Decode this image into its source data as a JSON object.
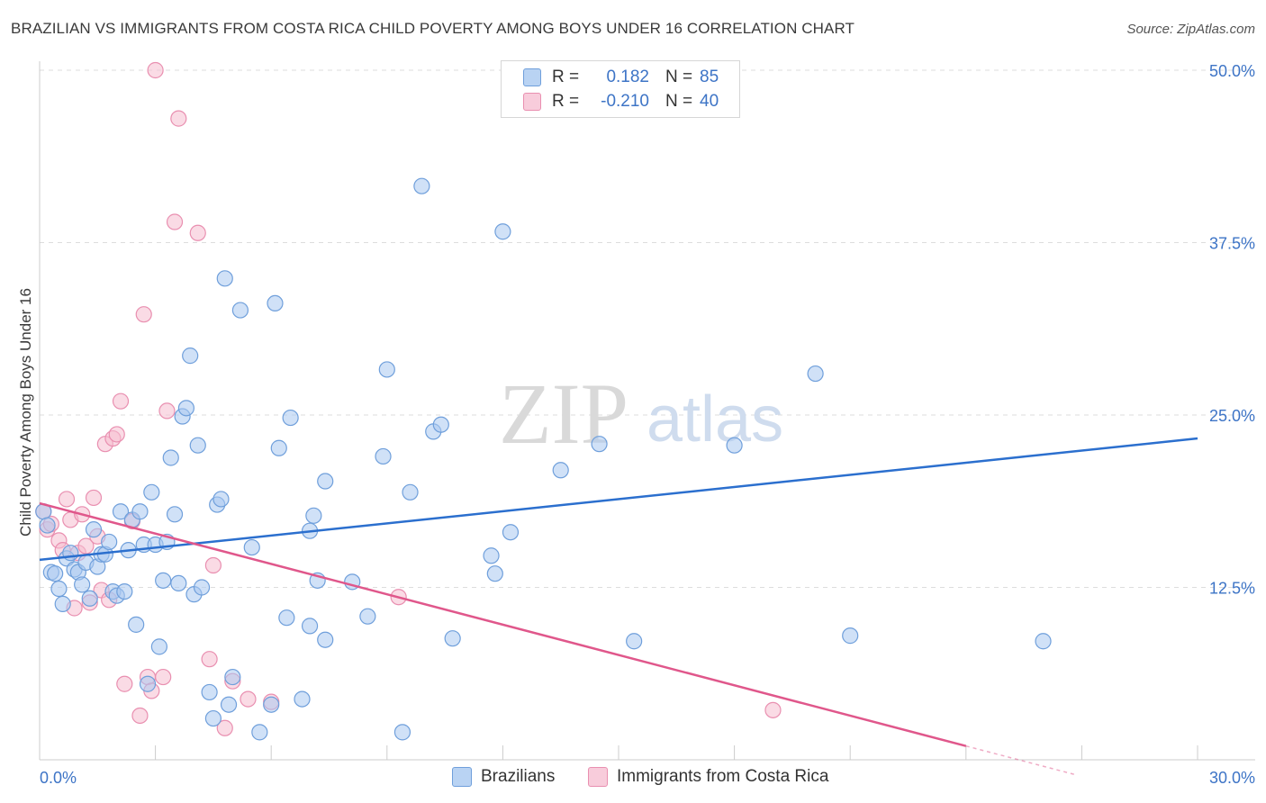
{
  "header": {
    "title": "BRAZILIAN VS IMMIGRANTS FROM COSTA RICA CHILD POVERTY AMONG BOYS UNDER 16 CORRELATION CHART",
    "source": "Source: ZipAtlas.com"
  },
  "watermark": {
    "zip": "ZIP",
    "atlas": "atlas"
  },
  "legend": {
    "series1": {
      "r_label": "R =",
      "r_value": "0.182",
      "n_label": "N =",
      "n_value": "85"
    },
    "series2": {
      "r_label": "R =",
      "r_value": "-0.210",
      "n_label": "N =",
      "n_value": "40"
    }
  },
  "bottom_legend": {
    "series1": "Brazilians",
    "series2": "Immigrants from Costa Rica"
  },
  "colors": {
    "blue_fill": "#a9c8f0",
    "blue_stroke": "#6f9fdb",
    "blue_line": "#2b6fce",
    "pink_fill": "#f6bdd0",
    "pink_stroke": "#e98fb0",
    "pink_line": "#e0578b",
    "tick_text": "#3d74c6",
    "grid": "#dddddd"
  },
  "chart_data": {
    "type": "scatter",
    "title": "BRAZILIAN VS IMMIGRANTS FROM COSTA RICA CHILD POVERTY AMONG BOYS UNDER 16 CORRELATION CHART",
    "xlabel": "",
    "ylabel": "Child Poverty Among Boys Under 16",
    "xlim": [
      0,
      30
    ],
    "ylim": [
      0,
      50
    ],
    "x_tick_labels": [
      "0.0%",
      "30.0%"
    ],
    "y_ticks": [
      12.5,
      25.0,
      37.5,
      50.0
    ],
    "y_tick_labels": [
      "12.5%",
      "25.0%",
      "37.5%",
      "50.0%"
    ],
    "grid": "horizontal dashed",
    "legend_position": "top-center",
    "series": [
      {
        "name": "Brazilians",
        "r": 0.182,
        "n": 85,
        "trend": [
          [
            0,
            14.5
          ],
          [
            30,
            23.3
          ]
        ],
        "points": [
          [
            0.1,
            18.0
          ],
          [
            0.2,
            17.0
          ],
          [
            0.3,
            13.6
          ],
          [
            0.4,
            13.5
          ],
          [
            0.5,
            12.4
          ],
          [
            0.6,
            11.3
          ],
          [
            0.7,
            14.6
          ],
          [
            0.8,
            15.0
          ],
          [
            0.9,
            13.8
          ],
          [
            1.0,
            13.6
          ],
          [
            1.1,
            12.7
          ],
          [
            1.2,
            14.3
          ],
          [
            1.3,
            11.7
          ],
          [
            1.4,
            16.7
          ],
          [
            1.5,
            14.0
          ],
          [
            1.6,
            14.9
          ],
          [
            1.7,
            14.9
          ],
          [
            1.8,
            15.8
          ],
          [
            1.9,
            12.2
          ],
          [
            2.0,
            11.9
          ],
          [
            2.1,
            18.0
          ],
          [
            2.2,
            12.2
          ],
          [
            2.3,
            15.2
          ],
          [
            2.4,
            17.4
          ],
          [
            2.5,
            9.8
          ],
          [
            2.6,
            18.0
          ],
          [
            2.7,
            15.6
          ],
          [
            2.8,
            5.5
          ],
          [
            2.9,
            19.4
          ],
          [
            3.0,
            15.6
          ],
          [
            3.1,
            8.2
          ],
          [
            3.2,
            13.0
          ],
          [
            3.3,
            15.8
          ],
          [
            3.4,
            21.9
          ],
          [
            3.5,
            17.8
          ],
          [
            3.6,
            12.8
          ],
          [
            3.7,
            24.9
          ],
          [
            3.8,
            25.5
          ],
          [
            3.9,
            29.3
          ],
          [
            4.0,
            12.0
          ],
          [
            4.1,
            22.8
          ],
          [
            4.2,
            12.5
          ],
          [
            4.4,
            4.9
          ],
          [
            4.5,
            3.0
          ],
          [
            4.6,
            18.5
          ],
          [
            4.7,
            18.9
          ],
          [
            4.8,
            34.9
          ],
          [
            4.9,
            4.0
          ],
          [
            5.0,
            6.0
          ],
          [
            5.2,
            32.6
          ],
          [
            5.5,
            15.4
          ],
          [
            5.7,
            2.0
          ],
          [
            6.0,
            4.0
          ],
          [
            6.1,
            33.1
          ],
          [
            6.2,
            22.6
          ],
          [
            6.4,
            10.3
          ],
          [
            6.5,
            24.8
          ],
          [
            6.8,
            4.4
          ],
          [
            7.0,
            16.6
          ],
          [
            7.0,
            9.7
          ],
          [
            7.1,
            17.7
          ],
          [
            7.2,
            13.0
          ],
          [
            7.4,
            8.7
          ],
          [
            7.4,
            20.2
          ],
          [
            8.1,
            12.9
          ],
          [
            8.5,
            10.4
          ],
          [
            8.9,
            22.0
          ],
          [
            9.0,
            28.3
          ],
          [
            9.4,
            2.0
          ],
          [
            9.6,
            19.4
          ],
          [
            9.9,
            41.6
          ],
          [
            10.2,
            23.8
          ],
          [
            10.4,
            24.3
          ],
          [
            10.7,
            8.8
          ],
          [
            11.7,
            14.8
          ],
          [
            11.8,
            13.5
          ],
          [
            12.0,
            38.3
          ],
          [
            12.2,
            16.5
          ],
          [
            13.5,
            21.0
          ],
          [
            14.5,
            22.9
          ],
          [
            15.4,
            8.6
          ],
          [
            18.0,
            22.8
          ],
          [
            20.1,
            28.0
          ],
          [
            21.0,
            9.0
          ],
          [
            26.0,
            8.6
          ]
        ]
      },
      {
        "name": "Immigrants from Costa Rica",
        "r": -0.21,
        "n": 40,
        "trend": [
          [
            0,
            18.6
          ],
          [
            24.0,
            1.0
          ]
        ],
        "points": [
          [
            0.1,
            18.0
          ],
          [
            0.2,
            16.7
          ],
          [
            0.3,
            17.1
          ],
          [
            0.5,
            15.9
          ],
          [
            0.6,
            15.2
          ],
          [
            0.7,
            18.9
          ],
          [
            0.8,
            17.4
          ],
          [
            0.9,
            11.0
          ],
          [
            1.0,
            15.0
          ],
          [
            1.1,
            17.8
          ],
          [
            1.2,
            15.5
          ],
          [
            1.3,
            11.4
          ],
          [
            1.4,
            19.0
          ],
          [
            1.5,
            16.2
          ],
          [
            1.6,
            12.3
          ],
          [
            1.7,
            22.9
          ],
          [
            1.8,
            11.6
          ],
          [
            1.9,
            23.3
          ],
          [
            2.0,
            23.6
          ],
          [
            2.1,
            26.0
          ],
          [
            2.2,
            5.5
          ],
          [
            2.4,
            17.3
          ],
          [
            2.6,
            3.2
          ],
          [
            2.7,
            32.3
          ],
          [
            2.8,
            6.0
          ],
          [
            2.9,
            5.0
          ],
          [
            3.0,
            50.0
          ],
          [
            3.2,
            6.0
          ],
          [
            3.3,
            25.3
          ],
          [
            3.5,
            39.0
          ],
          [
            3.6,
            46.5
          ],
          [
            4.1,
            38.2
          ],
          [
            4.4,
            7.3
          ],
          [
            4.5,
            14.1
          ],
          [
            4.8,
            2.3
          ],
          [
            5.0,
            5.7
          ],
          [
            5.4,
            4.4
          ],
          [
            6.0,
            4.2
          ],
          [
            9.3,
            11.8
          ],
          [
            19.0,
            3.6
          ]
        ]
      }
    ]
  }
}
